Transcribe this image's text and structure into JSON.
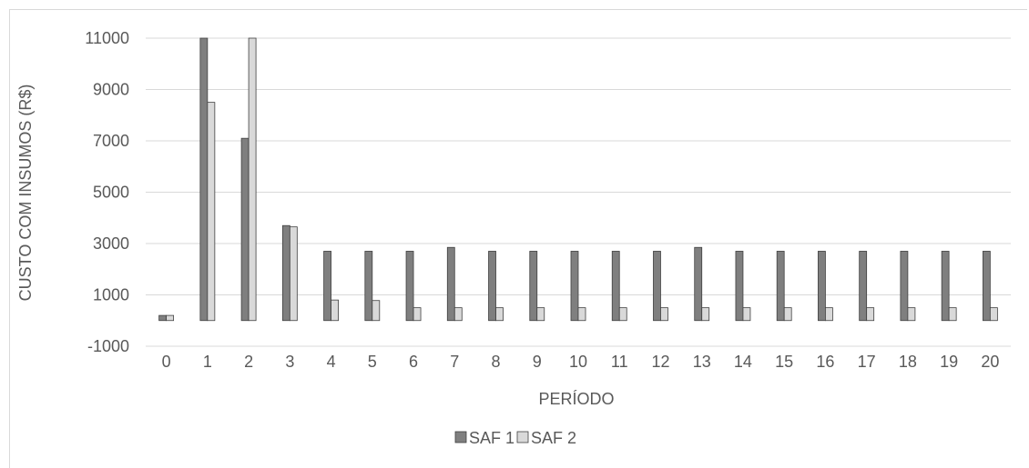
{
  "chart_data": {
    "type": "bar",
    "title": "",
    "xlabel": "PERÍODO",
    "ylabel": "CUSTO COM INSUMOS (R$)",
    "ylim": [
      -1000,
      11000
    ],
    "y_ticks": [
      -1000,
      1000,
      3000,
      5000,
      7000,
      9000,
      11000
    ],
    "y_tick_labels": [
      "-1000",
      "1000",
      "3000",
      "5000",
      "7000",
      "9000",
      "11000"
    ],
    "categories": [
      "0",
      "1",
      "2",
      "3",
      "4",
      "5",
      "6",
      "7",
      "8",
      "9",
      "10",
      "11",
      "12",
      "13",
      "14",
      "15",
      "16",
      "17",
      "18",
      "19",
      "20"
    ],
    "series": [
      {
        "name": "SAF 1",
        "color": "#7f7f7f",
        "values": [
          200,
          11000,
          7100,
          3700,
          2700,
          2700,
          2700,
          2850,
          2700,
          2700,
          2700,
          2700,
          2700,
          2850,
          2700,
          2700,
          2700,
          2700,
          2700,
          2700,
          2700
        ]
      },
      {
        "name": "SAF 2",
        "color": "#d9d9d9",
        "values": [
          200,
          8500,
          11000,
          3650,
          800,
          780,
          500,
          500,
          500,
          500,
          500,
          500,
          500,
          500,
          500,
          500,
          500,
          500,
          500,
          500,
          500
        ]
      }
    ],
    "grid": "horizontal",
    "legend": "bottom-center"
  }
}
